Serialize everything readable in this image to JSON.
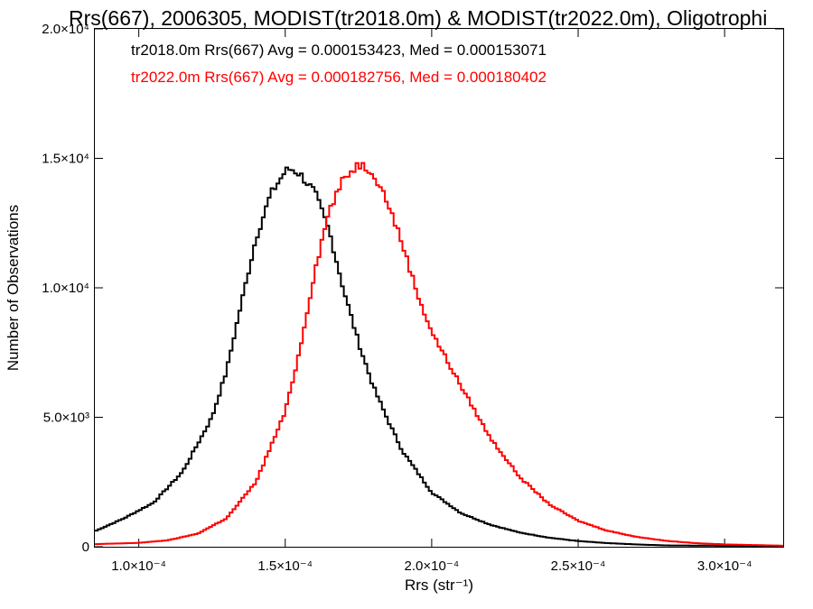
{
  "chart_data": {
    "type": "line",
    "title": "Rrs(667), 2006305, MODIST(tr2018.0m) & MODIST(tr2022.0m), Oligotrophi",
    "xlabel": "Rrs (str⁻¹)",
    "ylabel": "Number of Observations",
    "xlim": [
      8.5e-05,
      0.00032
    ],
    "ylim": [
      0,
      20000
    ],
    "x_ticks": [
      {
        "value": 0.0001,
        "label": "1.0×10⁻⁴"
      },
      {
        "value": 0.00015,
        "label": "1.5×10⁻⁴"
      },
      {
        "value": 0.0002,
        "label": "2.0×10⁻⁴"
      },
      {
        "value": 0.00025,
        "label": "2.5×10⁻⁴"
      },
      {
        "value": 0.0003,
        "label": "3.0×10⁻⁴"
      }
    ],
    "y_ticks": [
      {
        "value": 0,
        "label": "0"
      },
      {
        "value": 5000,
        "label": "5.0×10³"
      },
      {
        "value": 10000,
        "label": "1.0×10⁴"
      },
      {
        "value": 15000,
        "label": "1.5×10⁴"
      },
      {
        "value": 20000,
        "label": "2.0×10⁴"
      }
    ],
    "grid": false,
    "legend_position": "top-left",
    "series": [
      {
        "name": "tr2018.0m",
        "label": "tr2018.0m Rrs(667) Avg = 0.000153423, Med = 0.000153071",
        "color": "#000000",
        "step": "histogram",
        "x": [
          8.5e-05,
          9.5e-05,
          0.000105,
          0.000115,
          0.000125,
          0.00013,
          0.000135,
          0.00014,
          0.000145,
          0.00015,
          0.000152,
          0.000155,
          0.00016,
          0.000165,
          0.00017,
          0.000175,
          0.00018,
          0.000185,
          0.00019,
          0.0002,
          0.00021,
          0.00022,
          0.00023,
          0.00024,
          0.00025,
          0.00026,
          0.00027,
          0.00028,
          0.00032
        ],
        "y": [
          600,
          1100,
          1700,
          2900,
          5000,
          6800,
          9400,
          11900,
          13600,
          14500,
          14600,
          14400,
          13700,
          12200,
          9900,
          7900,
          6200,
          4900,
          3700,
          2100,
          1300,
          850,
          550,
          350,
          220,
          140,
          90,
          50,
          30
        ]
      },
      {
        "name": "tr2022.0m",
        "label": "tr2022.0m Rrs(667) Avg = 0.000182756, Med = 0.000180402",
        "color": "#ff0000",
        "step": "histogram",
        "x": [
          8.5e-05,
          0.0001,
          0.00011,
          0.00012,
          0.00013,
          0.00014,
          0.00015,
          0.000155,
          0.00016,
          0.000165,
          0.00017,
          0.000175,
          0.00018,
          0.000185,
          0.00019,
          0.000195,
          0.0002,
          0.00021,
          0.00022,
          0.00023,
          0.00024,
          0.00025,
          0.00026,
          0.00027,
          0.00028,
          0.00029,
          0.0003,
          0.00032
        ],
        "y": [
          100,
          150,
          250,
          500,
          1100,
          2500,
          5200,
          7600,
          10600,
          13000,
          14200,
          14800,
          14500,
          13300,
          11700,
          9800,
          8300,
          6200,
          4200,
          2700,
          1650,
          1000,
          620,
          380,
          230,
          140,
          90,
          40
        ]
      }
    ]
  }
}
